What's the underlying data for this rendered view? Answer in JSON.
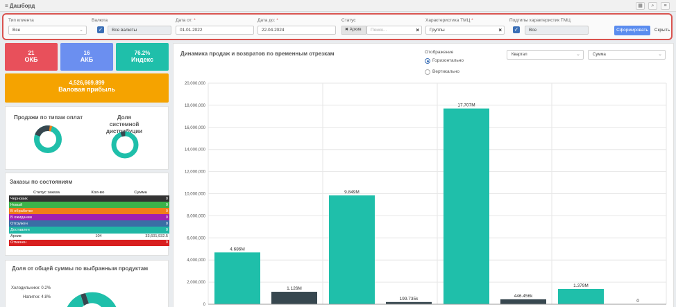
{
  "header": {
    "title": "≡ Дашборд"
  },
  "filters": {
    "client_type": {
      "label": "Тип клиента",
      "value": "Все"
    },
    "currency": {
      "label": "Валюта",
      "value": "Все валюты"
    },
    "date_from": {
      "label": "Дата от:",
      "required": "*",
      "value": "01.01.2022"
    },
    "date_to": {
      "label": "Дата до:",
      "required": "*",
      "value": "22.04.2024"
    },
    "status": {
      "label": "Статус",
      "chip": "Архив",
      "placeholder": "Поиск..."
    },
    "tmc": {
      "label": "Характеристика ТМЦ",
      "required": "*",
      "value": "Группы"
    },
    "subtypes": {
      "label": "Подтипы характеристик ТМЦ",
      "value": "Все"
    },
    "submit_label": "Сформировать",
    "hide_label": "Скрыть"
  },
  "kpis": [
    {
      "value": "21",
      "label": "ОКБ",
      "color": "#e8505b"
    },
    {
      "value": "16",
      "label": "АКБ",
      "color": "#6b8ff0"
    },
    {
      "value": "76.2%",
      "label": "Индекс",
      "color": "#1fbfaa"
    }
  ],
  "profit": {
    "value": "4,526,669.899",
    "label": "Валовая прибыль",
    "color": "#f5a300"
  },
  "donuts": {
    "payment_title": "Продажи по типам оплат",
    "distribution_title": "Доля системной дистрибуции"
  },
  "orders": {
    "title": "Заказы по состояниям",
    "headers": [
      "Статус заказа",
      "Кол-во",
      "Сумма"
    ],
    "rows": [
      {
        "status": "Черновик",
        "count": "",
        "sum": "0",
        "color": "#333333"
      },
      {
        "status": "Новый",
        "count": "",
        "sum": "0",
        "color": "#3cb34a"
      },
      {
        "status": "В обработке",
        "count": "",
        "sum": "0",
        "color": "#f07d1a"
      },
      {
        "status": "В ожидании",
        "count": "",
        "sum": "0",
        "color": "#a020b0"
      },
      {
        "status": "Отгружен",
        "count": "",
        "sum": "0",
        "color": "#3a6ea5"
      },
      {
        "status": "Доставлен",
        "count": "",
        "sum": "0",
        "color": "#20b7a5"
      },
      {
        "status": "Архив",
        "count": "104",
        "sum": "33,601,932.5",
        "color": "#ffffff"
      },
      {
        "status": "Отменен",
        "count": "",
        "sum": "0",
        "color": "#d81f1f"
      }
    ]
  },
  "share": {
    "title": "Доля от общей суммы по выбранным продуктам",
    "labels": [
      "Холодильники: 0.2%",
      "Напитки: 4.8%"
    ]
  },
  "chart_panel": {
    "title": "Динамика продаж и возвратов по временным отрезкам",
    "display_label": "Отображение",
    "options": [
      "Горизонтально",
      "Вертикально"
    ],
    "period": "Квартал",
    "metric": "Сумма"
  },
  "chart_data": {
    "type": "bar",
    "ylim": [
      0,
      20000000
    ],
    "yticks": [
      "0",
      "2,000,000",
      "4,000,000",
      "6,000,000",
      "8,000,000",
      "10,000,000",
      "12,000,000",
      "14,000,000",
      "16,000,000",
      "18,000,000",
      "20,000,000"
    ],
    "series": [
      {
        "color": "#1fbfaa",
        "values": [
          4686000,
          9849000,
          17707000,
          1379000
        ],
        "labels": [
          "4.686M",
          "9.849M",
          "17.707M",
          "1.379M"
        ]
      },
      {
        "color": "#37474f",
        "values": [
          1126000,
          199735,
          446456,
          0
        ],
        "labels": [
          "1.126M",
          "199.735k",
          "446.456k",
          "0"
        ]
      }
    ],
    "grid": true,
    "colors": {
      "sales": "#1fbfaa",
      "returns": "#37474f"
    }
  }
}
